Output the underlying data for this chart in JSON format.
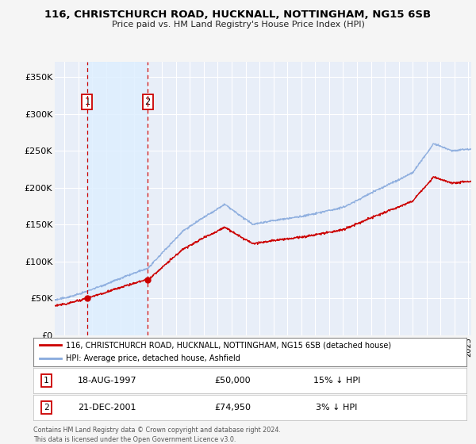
{
  "title": "116, CHRISTCHURCH ROAD, HUCKNALL, NOTTINGHAM, NG15 6SB",
  "subtitle": "Price paid vs. HM Land Registry's House Price Index (HPI)",
  "xlim_start": 1995.3,
  "xlim_end": 2025.2,
  "ylim": [
    0,
    370000
  ],
  "yticks": [
    0,
    50000,
    100000,
    150000,
    200000,
    250000,
    300000,
    350000
  ],
  "ytick_labels": [
    "£0",
    "£50K",
    "£100K",
    "£150K",
    "£200K",
    "£250K",
    "£300K",
    "£350K"
  ],
  "background_color": "#f5f5f5",
  "plot_bg_color": "#e8eef8",
  "grid_color": "#ffffff",
  "hpi_color": "#88aadd",
  "price_color": "#cc0000",
  "shade_color": "#ddeeff",
  "sale1_year": 1997.62,
  "sale1_price": 50000,
  "sale1_label": "1",
  "sale1_date": "18-AUG-1997",
  "sale1_amount": "£50,000",
  "sale1_hpi": "15% ↓ HPI",
  "sale2_year": 2001.97,
  "sale2_price": 74950,
  "sale2_label": "2",
  "sale2_date": "21-DEC-2001",
  "sale2_amount": "£74,950",
  "sale2_hpi": "3% ↓ HPI",
  "legend_label_price": "116, CHRISTCHURCH ROAD, HUCKNALL, NOTTINGHAM, NG15 6SB (detached house)",
  "legend_label_hpi": "HPI: Average price, detached house, Ashfield",
  "footnote": "Contains HM Land Registry data © Crown copyright and database right 2024.\nThis data is licensed under the Open Government Licence v3.0."
}
